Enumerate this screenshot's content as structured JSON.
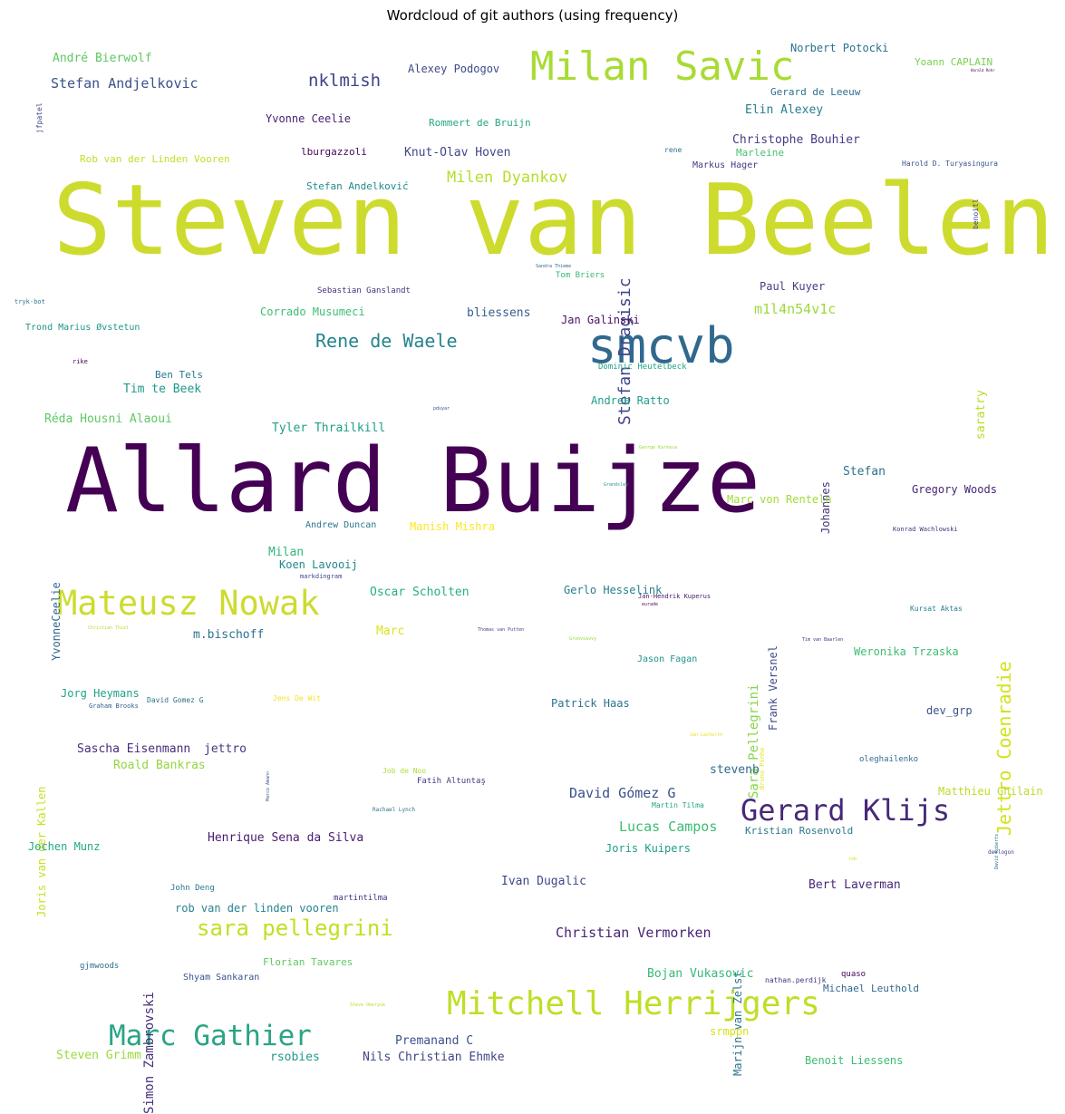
{
  "title": "Wordcloud of git authors (using frequency)",
  "palette": {
    "dark_purple": "#440154",
    "indigo": "#482878",
    "blue": "#3e4a89",
    "steel": "#31688e",
    "teal": "#26828e",
    "green_teal": "#1f9e89",
    "green": "#35b779",
    "light_green": "#6ece58",
    "lime": "#b5de2b",
    "yellow": "#cddb2f"
  },
  "words": [
    {
      "text": "Steven van Beelen",
      "color": "#cddb2f"
    },
    {
      "text": "Allard Buijze",
      "color": "#440154"
    },
    {
      "text": "smcvb",
      "color": "#31688e"
    },
    {
      "text": "Milan Savic",
      "color": "#a8db34"
    },
    {
      "text": "Mateusz Nowak",
      "color": "#cddb2f"
    },
    {
      "text": "Gerard Klijs",
      "color": "#482878"
    },
    {
      "text": "Mitchell Herrijgers",
      "color": "#bddf26"
    },
    {
      "text": "Marc Gathier",
      "color": "#2aa484"
    },
    {
      "text": "Jettro Coenradie",
      "color": "#d2e21b"
    },
    {
      "text": "Stefan Dragisic",
      "color": "#414487"
    },
    {
      "text": "Rene de Waele",
      "color": "#25848e"
    },
    {
      "text": "sara pellegrini",
      "color": "#c2df23"
    },
    {
      "text": "nklmish",
      "color": "#414487"
    },
    {
      "text": "Milen Dyankov",
      "color": "#b5de2b"
    },
    {
      "text": "Stefan Andjelkovic",
      "color": "#3b528b"
    },
    {
      "text": "m1l4n54v1c",
      "color": "#9dd93b"
    },
    {
      "text": "Sara Pellegrini",
      "color": "#86d549"
    },
    {
      "text": "Simon Zambrovski",
      "color": "#472d7b"
    },
    {
      "text": "Joris van der Kallen",
      "color": "#c8e020"
    },
    {
      "text": "Frank Versnel",
      "color": "#3e4a89"
    },
    {
      "text": "Marijn van Zelst",
      "color": "#2c738e"
    },
    {
      "text": "Lucas Campos",
      "color": "#3dbc74"
    },
    {
      "text": "David Gómez G",
      "color": "#3b528b"
    },
    {
      "text": "Christian Vermorken",
      "color": "#482475"
    },
    {
      "text": "Johannes",
      "color": "#46337e"
    },
    {
      "text": "YvonneCeelie",
      "color": "#31688e"
    },
    {
      "text": "André Bierwolf",
      "color": "#5ec962"
    },
    {
      "text": "Alexey Podogov",
      "color": "#3e4a89"
    },
    {
      "text": "Norbert Potocki",
      "color": "#2c728e"
    },
    {
      "text": "Yoann CAPLAIN",
      "color": "#7ad151"
    },
    {
      "text": "Gerard de Leeuw",
      "color": "#2e6e8e"
    },
    {
      "text": "Elin Alexey",
      "color": "#277f8e"
    },
    {
      "text": "Yvonne Ceelie",
      "color": "#482173"
    },
    {
      "text": "Rommert de Bruijn",
      "color": "#22a884"
    },
    {
      "text": "Christophe Bouhier",
      "color": "#433e85"
    },
    {
      "text": "Marleine",
      "color": "#4ac16d"
    },
    {
      "text": "lburgazzoli",
      "color": "#450559"
    },
    {
      "text": "Knut-Olav Hoven",
      "color": "#3f4788"
    },
    {
      "text": "Rob van der Linden Vooren",
      "color": "#c0df25"
    },
    {
      "text": "rene",
      "color": "#2d708e"
    },
    {
      "text": "Markus Hager",
      "color": "#443983"
    },
    {
      "text": "Harold D. Turyasingura",
      "color": "#3a548c"
    },
    {
      "text": "Stefan Andelković",
      "color": "#228d8d"
    },
    {
      "text": "benoitl",
      "color": "#3f4889"
    },
    {
      "text": "jfpatel",
      "color": "#404588"
    },
    {
      "text": "Harald Rohr",
      "color": "#440154"
    },
    {
      "text": "Sandra Thieme",
      "color": "#31688e"
    },
    {
      "text": "Tom Briers",
      "color": "#35b779"
    },
    {
      "text": "Sebastian Ganslandt",
      "color": "#46307e"
    },
    {
      "text": "Paul Kuyer",
      "color": "#424086"
    },
    {
      "text": "tryk-bot",
      "color": "#2a788e"
    },
    {
      "text": "Corrado Musumeci",
      "color": "#3fbc73"
    },
    {
      "text": "bliessens",
      "color": "#355f8d"
    },
    {
      "text": "Jan Galinski",
      "color": "#471164"
    },
    {
      "text": "Trond Marius Øvstetun",
      "color": "#1f968b"
    },
    {
      "text": "saratry",
      "color": "#b8de29"
    },
    {
      "text": "rike",
      "color": "#450457"
    },
    {
      "text": "Dominic Heutelbeck",
      "color": "#20a386"
    },
    {
      "text": "Ben Tels",
      "color": "#2a788e"
    },
    {
      "text": "Tim te Beek",
      "color": "#1f9a8a"
    },
    {
      "text": "Andrea Ratto",
      "color": "#1f9e89"
    },
    {
      "text": "pduyar",
      "color": "#3b528b"
    },
    {
      "text": "Réda Housni Alaoui",
      "color": "#5ec962"
    },
    {
      "text": "Tyler Thrailkill",
      "color": "#1f9e89"
    },
    {
      "text": "George Karkesa",
      "color": "#a0da39"
    },
    {
      "text": "Stefan",
      "color": "#2c738e"
    },
    {
      "text": "Gregory Woods",
      "color": "#482576"
    },
    {
      "text": "Marc von Renteln",
      "color": "#a2da37"
    },
    {
      "text": "Grandsley",
      "color": "#1f988b"
    },
    {
      "text": "Andrew Duncan",
      "color": "#2a788e"
    },
    {
      "text": "Manish Mishra",
      "color": "#fde725"
    },
    {
      "text": "Konrad Wachlowski",
      "color": "#46327e"
    },
    {
      "text": "Milan",
      "color": "#32b67a"
    },
    {
      "text": "Koen Lavooij",
      "color": "#23898e"
    },
    {
      "text": "markdingram",
      "color": "#3f4889"
    },
    {
      "text": "Oscar Scholten",
      "color": "#29af7f"
    },
    {
      "text": "Gerlo Hesselink",
      "color": "#277f8e"
    },
    {
      "text": "Jan-Hendrik Kuperus",
      "color": "#481668"
    },
    {
      "text": "Kursat Aktas",
      "color": "#26818e"
    },
    {
      "text": "eurade",
      "color": "#471063"
    },
    {
      "text": "Marc",
      "color": "#dde318"
    },
    {
      "text": "m.bischoff",
      "color": "#2c728e"
    },
    {
      "text": "Christian Thiel",
      "color": "#b5de2b"
    },
    {
      "text": "Thomas van Putten",
      "color": "#404688"
    },
    {
      "text": "Groovsavvy",
      "color": "#95d840"
    },
    {
      "text": "Tim van Baarlen",
      "color": "#46307e"
    },
    {
      "text": "Weronika Trzaska",
      "color": "#3fbc73"
    },
    {
      "text": "Jason Fagan",
      "color": "#1f948c"
    },
    {
      "text": "Jorg Heymans",
      "color": "#1fa188"
    },
    {
      "text": "David Gomez G",
      "color": "#2d708e"
    },
    {
      "text": "Jens De Wit",
      "color": "#f1e51d"
    },
    {
      "text": "Graham Brooks",
      "color": "#355f8d"
    },
    {
      "text": "Patrick Haas",
      "color": "#2c728e"
    },
    {
      "text": "dev_grp",
      "color": "#3b528b"
    },
    {
      "text": "Jan Lacharth",
      "color": "#e5e419"
    },
    {
      "text": "Bruno Pinho",
      "color": "#e2e418"
    },
    {
      "text": "Sascha Eisenmann",
      "color": "#472c7a"
    },
    {
      "text": "jettro",
      "color": "#453781"
    },
    {
      "text": "Roald Bankras",
      "color": "#93d741"
    },
    {
      "text": "Marco Amann",
      "color": "#3b528b"
    },
    {
      "text": "oleghailenko",
      "color": "#2e6d8e"
    },
    {
      "text": "stevenb",
      "color": "#306a8e"
    },
    {
      "text": "Job de Noo",
      "color": "#b0dd2f"
    },
    {
      "text": "Fatih Altuntaş",
      "color": "#443983"
    },
    {
      "text": "Matthieu Ghilain",
      "color": "#bade28"
    },
    {
      "text": "Rachael Lynch",
      "color": "#2d708e"
    },
    {
      "text": "Martin Tilma",
      "color": "#20a486"
    },
    {
      "text": "Kristian Rosenvold",
      "color": "#2a788e"
    },
    {
      "text": "David Roberts",
      "color": "#2c728e"
    },
    {
      "text": "Henrique Sena da Silva",
      "color": "#481b6d"
    },
    {
      "text": "Jochen Munz",
      "color": "#22a785"
    },
    {
      "text": "Joris Kuipers",
      "color": "#1f9e89"
    },
    {
      "text": "rob",
      "color": "#d5e21a"
    },
    {
      "text": "devlogon",
      "color": "#3f4788"
    },
    {
      "text": "Ivan Dugalic",
      "color": "#3e4989"
    },
    {
      "text": "Bert Laverman",
      "color": "#482878"
    },
    {
      "text": "John Deng",
      "color": "#2a788e"
    },
    {
      "text": "martintilma",
      "color": "#46327e"
    },
    {
      "text": "rob van der linden vooren",
      "color": "#26828e"
    },
    {
      "text": "gjmwoods",
      "color": "#2d708e"
    },
    {
      "text": "Florian Tavares",
      "color": "#5ec962"
    },
    {
      "text": "Shyam Sankaran",
      "color": "#3a538b"
    },
    {
      "text": "Bojan Vukasovic",
      "color": "#37b878"
    },
    {
      "text": "nathan.perdijk",
      "color": "#46327e"
    },
    {
      "text": "quaso",
      "color": "#450559"
    },
    {
      "text": "Michael Leuthold",
      "color": "#31688e"
    },
    {
      "text": "Steve Oberyuk",
      "color": "#b5de2b"
    },
    {
      "text": "srmppn",
      "color": "#d5e21a"
    },
    {
      "text": "Premanand C",
      "color": "#3b528b"
    },
    {
      "text": "Steven Grimm",
      "color": "#9bd93c"
    },
    {
      "text": "rsobies",
      "color": "#1f9a8a"
    },
    {
      "text": "Nils Christian Ehmke",
      "color": "#404588"
    },
    {
      "text": "Benoit Liessens",
      "color": "#3dbc74"
    }
  ]
}
